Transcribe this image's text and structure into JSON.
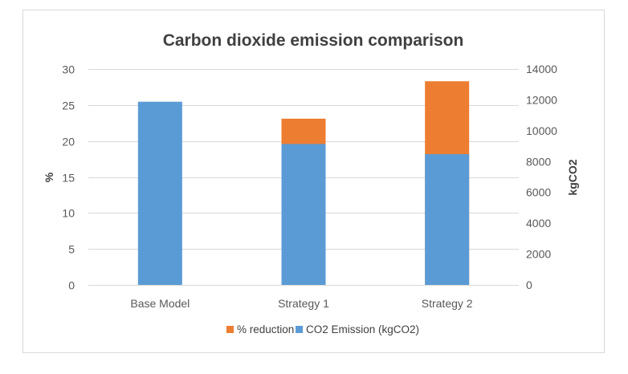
{
  "chart_data": {
    "type": "bar",
    "title": "Carbon dioxide emission comparison",
    "categories": [
      "Base Model",
      "Strategy 1",
      "Strategy 2"
    ],
    "series": [
      {
        "name": "% reduction",
        "axis": "left",
        "color": "#ED7D31",
        "values": [
          0,
          23.1,
          28.3
        ]
      },
      {
        "name": "CO2 Emission (kgCO2)",
        "axis": "right",
        "color": "#5B9BD5",
        "values": [
          11880,
          9140,
          8480
        ]
      }
    ],
    "ylabel": "%",
    "ylim": [
      0,
      30
    ],
    "yticks": [
      0,
      5,
      10,
      15,
      20,
      25,
      30
    ],
    "y2label": "kgCO2",
    "y2lim": [
      0,
      14000
    ],
    "y2ticks": [
      0,
      2000,
      4000,
      6000,
      8000,
      10000,
      12000,
      14000
    ],
    "grid": true,
    "legend_position": "bottom"
  }
}
